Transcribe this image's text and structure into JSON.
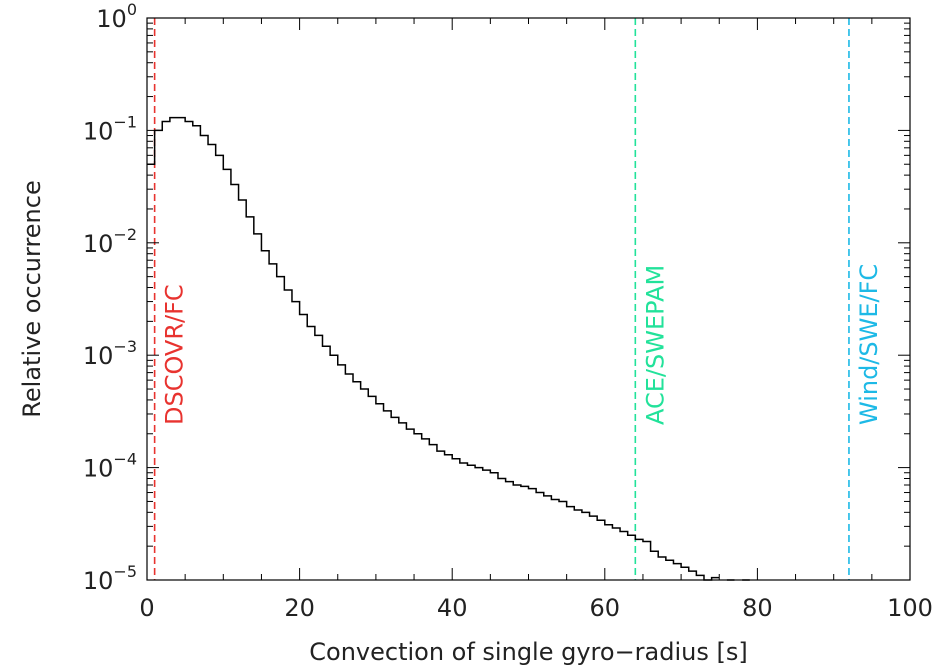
{
  "chart_data": {
    "type": "histogram",
    "title": "",
    "xlabel": "Convection of single gyro−radius [s]",
    "ylabel": "Relative occurrence",
    "xlim": [
      0,
      100
    ],
    "ylim": [
      1e-05,
      1
    ],
    "yscale": "log",
    "grid": false,
    "x_ticks": [
      0,
      20,
      40,
      60,
      80,
      100
    ],
    "x_tick_labels": [
      "0",
      "20",
      "40",
      "60",
      "80",
      "100"
    ],
    "y_ticks": [
      {
        "value": 1e-05,
        "base": "10",
        "exp": "−5"
      },
      {
        "value": 0.0001,
        "base": "10",
        "exp": "−4"
      },
      {
        "value": 0.001,
        "base": "10",
        "exp": "−3"
      },
      {
        "value": 0.01,
        "base": "10",
        "exp": "−2"
      },
      {
        "value": 0.1,
        "base": "10",
        "exp": "−1"
      },
      {
        "value": 1,
        "base": "10",
        "exp": "0"
      }
    ],
    "bin_width": 1,
    "series": [
      {
        "color": "#000000",
        "x": [
          0,
          1,
          2,
          3,
          4,
          5,
          6,
          7,
          8,
          9,
          10,
          11,
          12,
          13,
          14,
          15,
          16,
          17,
          18,
          19,
          20,
          21,
          22,
          23,
          24,
          25,
          26,
          27,
          28,
          29,
          30,
          31,
          32,
          33,
          34,
          35,
          36,
          37,
          38,
          39,
          40,
          41,
          42,
          43,
          44,
          45,
          46,
          47,
          48,
          49,
          50,
          51,
          52,
          53,
          54,
          55,
          56,
          57,
          58,
          59,
          60,
          61,
          62,
          63,
          64,
          65,
          66,
          67,
          68,
          69,
          70,
          71,
          72,
          73,
          74,
          76,
          78
        ],
        "values": [
          0.05,
          0.1,
          0.12,
          0.13,
          0.13,
          0.12,
          0.11,
          0.09,
          0.075,
          0.06,
          0.045,
          0.033,
          0.024,
          0.017,
          0.012,
          0.0085,
          0.0065,
          0.005,
          0.0038,
          0.003,
          0.0023,
          0.0018,
          0.0015,
          0.0012,
          0.001,
          0.00082,
          0.00068,
          0.00058,
          0.0005,
          0.00043,
          0.00037,
          0.00032,
          0.00028,
          0.00025,
          0.00022,
          0.0002,
          0.00018,
          0.00016,
          0.00014,
          0.00013,
          0.00012,
          0.00011,
          0.000105,
          0.0001,
          9.5e-05,
          9e-05,
          8e-05,
          7.5e-05,
          7e-05,
          6.8e-05,
          6.5e-05,
          6e-05,
          5.6e-05,
          5.2e-05,
          5e-05,
          4.5e-05,
          4.2e-05,
          4e-05,
          3.7e-05,
          3.4e-05,
          3.1e-05,
          2.9e-05,
          2.7e-05,
          2.5e-05,
          2.3e-05,
          2.2e-05,
          1.8e-05,
          1.6e-05,
          1.5e-05,
          1.4e-05,
          1.3e-05,
          1.2e-05,
          1.1e-05,
          1e-05,
          1.05e-05,
          1e-05,
          1e-05
        ]
      }
    ],
    "reference_lines": [
      {
        "label": "DSCOVR/FC",
        "x": 1,
        "color": "#e8332f"
      },
      {
        "label": "ACE/SWEPAM",
        "x": 64,
        "color": "#22e29a"
      },
      {
        "label": "Wind/SWE/FC",
        "x": 92,
        "color": "#1db9e6"
      }
    ]
  }
}
